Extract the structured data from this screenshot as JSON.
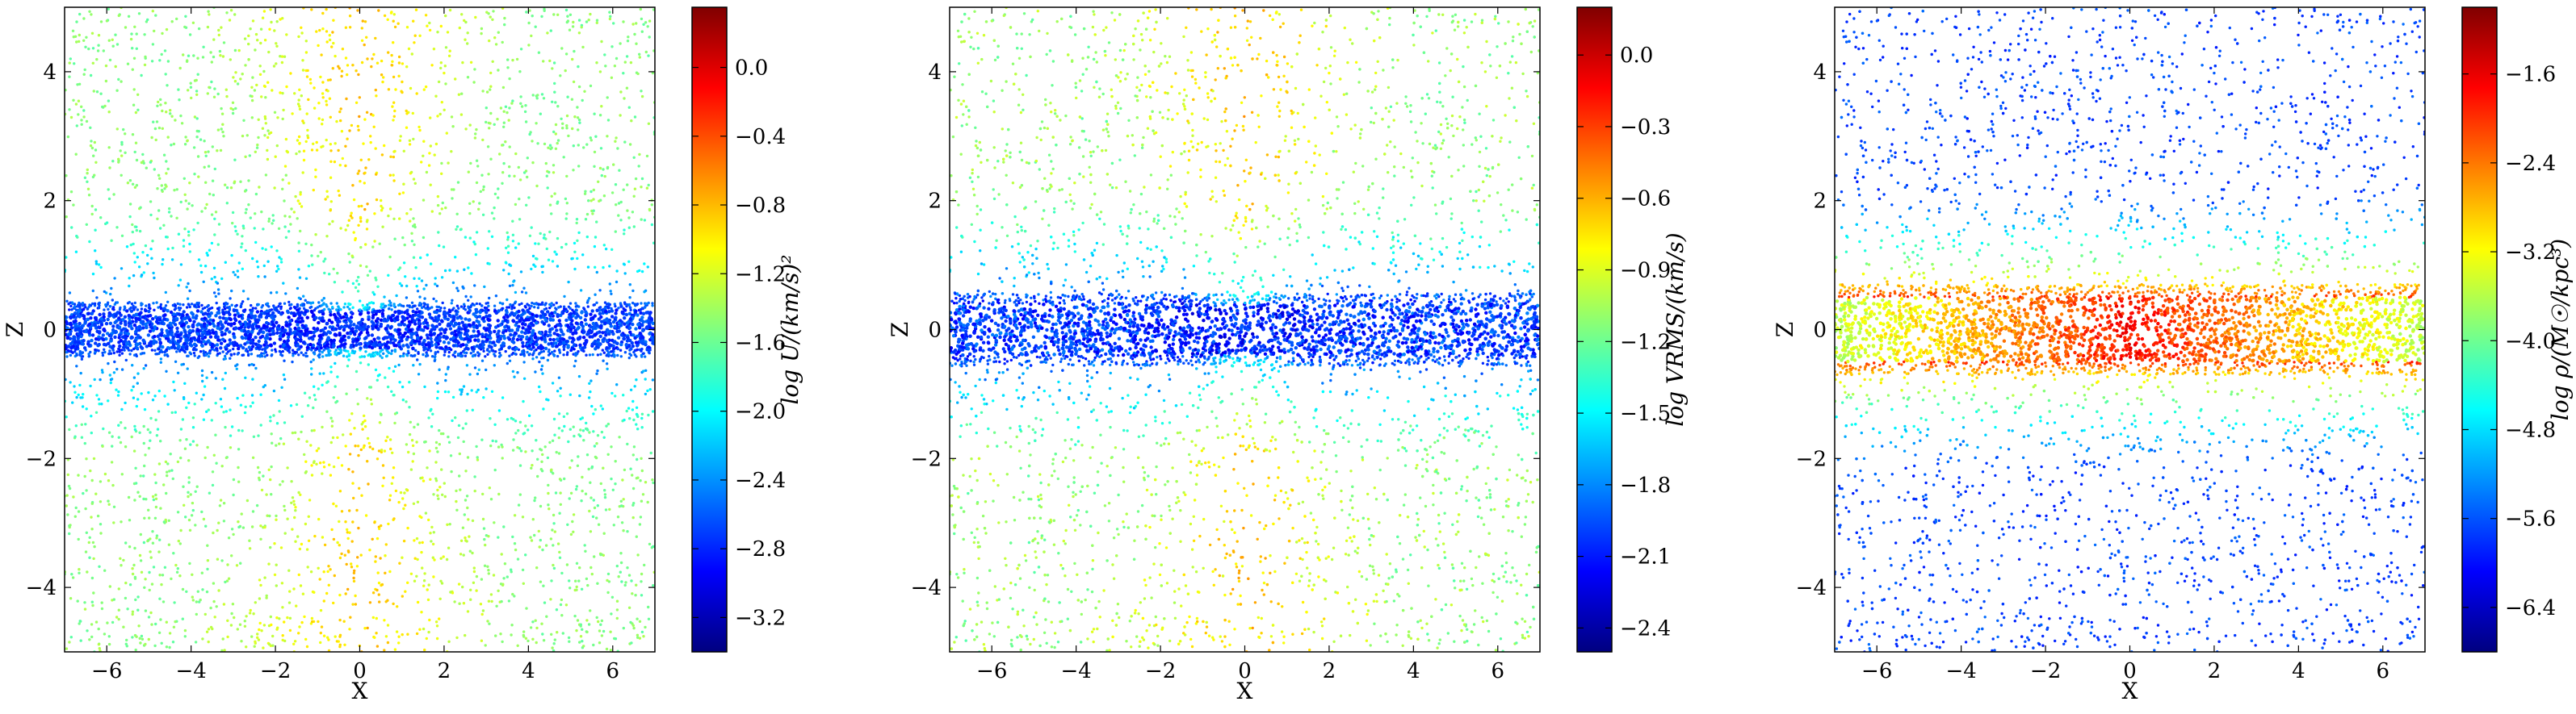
{
  "chart_data": [
    {
      "type": "scatter",
      "xlabel": "X",
      "ylabel": "Z",
      "xlim": [
        -7,
        7
      ],
      "ylim": [
        -5,
        5
      ],
      "xticks": [
        -6,
        -4,
        -2,
        0,
        2,
        4,
        6
      ],
      "yticks": [
        -4,
        -2,
        0,
        2,
        4
      ],
      "colorbar": {
        "label": "log U/(km/s)²",
        "range": [
          -3.4,
          0.35
        ],
        "ticks": [
          0.0,
          -0.4,
          -0.8,
          -1.2,
          -1.6,
          -2.0,
          -2.4,
          -2.8,
          -3.2
        ],
        "colormap": "jet"
      },
      "field_model": {
        "halo_value": -1.5,
        "disk_value": -2.8,
        "disk_thickness": 0.3,
        "center_value": -0.6
      }
    },
    {
      "type": "scatter",
      "xlabel": "X",
      "ylabel": "Z",
      "xlim": [
        -7,
        7
      ],
      "ylim": [
        -5,
        5
      ],
      "xticks": [
        -6,
        -4,
        -2,
        0,
        2,
        4,
        6
      ],
      "yticks": [
        -4,
        -2,
        0,
        2,
        4
      ],
      "colorbar": {
        "label": "log VRMS/(km/s)",
        "range": [
          -2.5,
          0.2
        ],
        "ticks": [
          0.0,
          -0.3,
          -0.6,
          -0.9,
          -1.2,
          -1.5,
          -1.8,
          -2.1,
          -2.4
        ],
        "colormap": "jet"
      },
      "field_model": {
        "halo_value": -1.1,
        "disk_value": -2.1,
        "disk_thickness": 0.4,
        "center_value": -0.5
      }
    },
    {
      "type": "scatter",
      "xlabel": "X",
      "ylabel": "Z",
      "xlim": [
        -7,
        7
      ],
      "ylim": [
        -5,
        5
      ],
      "xticks": [
        -6,
        -4,
        -2,
        0,
        2,
        4,
        6
      ],
      "yticks": [
        -4,
        -2,
        0,
        2,
        4
      ],
      "colorbar": {
        "label": "log ρ/(M☉/kpc³)",
        "range": [
          -6.8,
          -1.0
        ],
        "ticks": [
          -1.6,
          -2.4,
          -3.2,
          -4.0,
          -4.8,
          -5.6,
          -6.4
        ],
        "colormap": "jet"
      },
      "field_model": {
        "halo_value": -5.7,
        "disk_value": -1.8,
        "disk_thickness": 0.5,
        "center_value": -1.6
      }
    }
  ]
}
